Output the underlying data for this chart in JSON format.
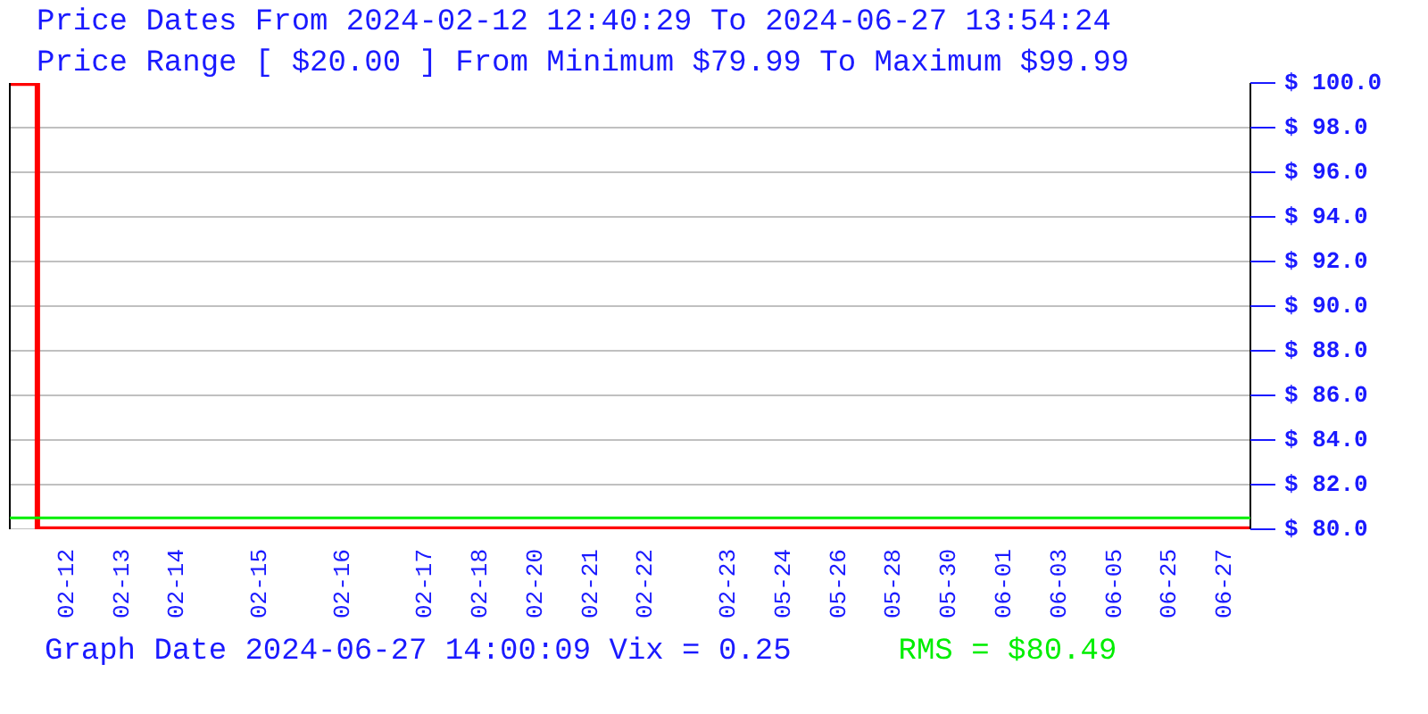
{
  "chart_data": {
    "type": "step",
    "title": "Price Dates From 2024-02-12 12:40:29 To 2024-06-27 13:54:24",
    "subtitle": "Price Range [ $20.00 ] From Minimum $79.99 To Maximum $99.99",
    "annotations": [
      "Graph Date 2024-06-27 14:00:09 Vix = 0.25",
      "RMS = $80.49"
    ],
    "categories": [
      null,
      null,
      "02-12",
      null,
      "02-13",
      null,
      "02-14",
      null,
      null,
      "02-15",
      null,
      null,
      "02-16",
      null,
      null,
      "02-17",
      null,
      "02-18",
      null,
      "02-20",
      null,
      "02-21",
      null,
      "02-22",
      null,
      null,
      "02-23",
      null,
      "05-24",
      null,
      "05-26",
      null,
      "05-28",
      null,
      "05-30",
      null,
      "06-01",
      null,
      "06-03",
      null,
      "06-05",
      null,
      "06-25",
      null,
      "06-27",
      null
    ],
    "series": [
      {
        "color": "#ff0000",
        "values": [
          99.99,
          79.99,
          79.99,
          79.99,
          79.99,
          79.99,
          79.99,
          79.99,
          79.99,
          79.99,
          79.99,
          79.99,
          79.99,
          79.99,
          79.99,
          79.99,
          79.99,
          79.99,
          79.99,
          79.99,
          79.99,
          79.99,
          79.99,
          79.99,
          79.99,
          79.99,
          79.99,
          79.99,
          79.99,
          79.99,
          79.99,
          79.99,
          79.99,
          79.99,
          79.99,
          79.99,
          79.99,
          79.99,
          79.99,
          79.99,
          79.99,
          79.99,
          79.99,
          79.99,
          79.99,
          79.99
        ]
      }
    ],
    "ylim": [
      79.98,
      100
    ],
    "yticks": [
      {
        "value": 80,
        "label": "$ 80.0"
      },
      {
        "value": 82,
        "label": "$ 82.0"
      },
      {
        "value": 84,
        "label": "$ 84.0"
      },
      {
        "value": 86,
        "label": "$ 86.0"
      },
      {
        "value": 88,
        "label": "$ 88.0"
      },
      {
        "value": 90,
        "label": "$ 90.0"
      },
      {
        "value": 92,
        "label": "$ 92.0"
      },
      {
        "value": 94,
        "label": "$ 94.0"
      },
      {
        "value": 96,
        "label": "$ 96.0"
      },
      {
        "value": 98,
        "label": "$ 98.0"
      },
      {
        "value": 100,
        "label": "$ 100.0"
      }
    ],
    "ref_lines": [
      {
        "axis": "y",
        "value": 80.49,
        "color": "#00ee00"
      }
    ],
    "grid": "y",
    "marker": "none",
    "line_style": "solid"
  }
}
